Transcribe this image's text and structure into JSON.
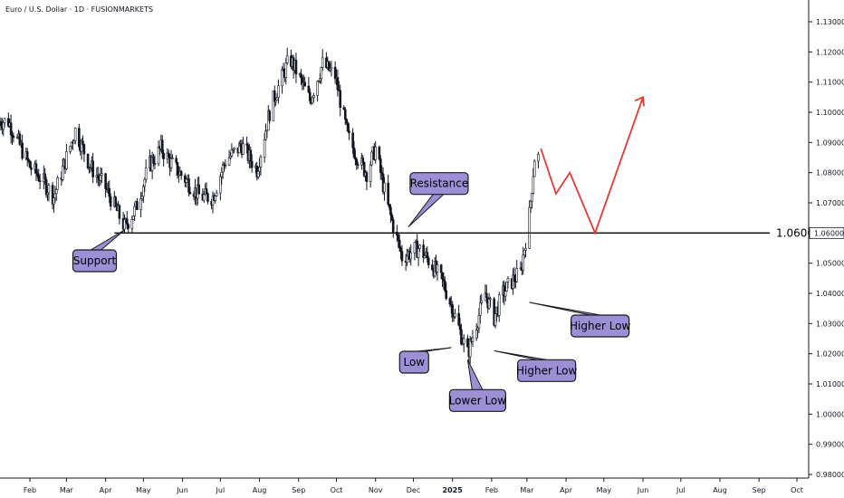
{
  "title": "Euro / U.S. Dollar · 1D · FUSIONMARKETS",
  "colors": {
    "candle": "#131722",
    "level_line": "#000000",
    "projection": "#e53935",
    "callout_fill": "#9c8fd6",
    "callout_stroke": "#1a1a1a",
    "axis": "#131722",
    "price_tag_bg": "#ffffff"
  },
  "chart_data": {
    "type": "line",
    "title": "Euro / U.S. Dollar · 1D · FUSIONMARKETS",
    "xlabel": "",
    "ylabel": "",
    "ylim": [
      0.98,
      1.135
    ],
    "grid": false,
    "y_ticks": [
      "1.13000",
      "1.12000",
      "1.11000",
      "1.10000",
      "1.09000",
      "1.08000",
      "1.07000",
      "1.06000",
      "1.05000",
      "1.04000",
      "1.03000",
      "1.02000",
      "1.01000",
      "1.00000",
      "0.99000",
      "0.98000"
    ],
    "x_ticks": [
      "Feb",
      "Mar",
      "Apr",
      "May",
      "Jun",
      "Jul",
      "Aug",
      "Sep",
      "Oct",
      "Nov",
      "Dec",
      "2025",
      "Feb",
      "Mar",
      "Apr",
      "May",
      "Jun",
      "Jul",
      "Aug",
      "Sep",
      "Oct"
    ],
    "x_ticks_bold": [
      "2025"
    ],
    "series": [
      {
        "type": "price",
        "x": [
          "2024-01-15",
          "2024-02-01",
          "2024-02-10",
          "2024-02-20",
          "2024-03-01",
          "2024-03-08",
          "2024-03-20",
          "2024-04-01",
          "2024-04-16",
          "2024-04-25",
          "2024-05-05",
          "2024-05-15",
          "2024-05-25",
          "2024-06-05",
          "2024-06-15",
          "2024-06-25",
          "2024-07-05",
          "2024-07-18",
          "2024-07-30",
          "2024-08-10",
          "2024-08-25",
          "2024-09-01",
          "2024-09-10",
          "2024-09-20",
          "2024-09-30",
          "2024-10-10",
          "2024-10-20",
          "2024-10-25",
          "2024-11-01",
          "2024-11-10",
          "2024-11-22",
          "2024-12-05",
          "2024-12-15",
          "2024-12-25",
          "2025-01-01",
          "2025-01-08",
          "2025-01-13",
          "2025-01-20",
          "2025-01-27",
          "2025-02-03",
          "2025-02-10",
          "2025-02-17",
          "2025-02-24",
          "2025-03-03",
          "2025-03-07"
        ],
        "y": [
          1.097,
          1.082,
          1.078,
          1.072,
          1.085,
          1.094,
          1.082,
          1.075,
          1.062,
          1.068,
          1.082,
          1.088,
          1.082,
          1.077,
          1.072,
          1.072,
          1.084,
          1.089,
          1.081,
          1.102,
          1.118,
          1.112,
          1.104,
          1.116,
          1.112,
          1.092,
          1.083,
          1.08,
          1.088,
          1.07,
          1.052,
          1.055,
          1.05,
          1.043,
          1.035,
          1.026,
          1.02,
          1.03,
          1.04,
          1.032,
          1.04,
          1.044,
          1.047,
          1.066,
          1.085
        ]
      },
      {
        "type": "projection",
        "x": [
          "2025-03-12",
          "2025-03-24",
          "2025-04-04",
          "2025-04-24",
          "2025-06-01"
        ],
        "y": [
          1.088,
          1.073,
          1.08,
          1.06,
          1.105
        ]
      }
    ],
    "levels": [
      {
        "value": 1.06,
        "label": "1.0600",
        "axis_label": "1.06000"
      }
    ],
    "annotations": [
      {
        "text": "Support",
        "x": "2024-04-16",
        "y": 1.061
      },
      {
        "text": "Resistance",
        "x": "2024-11-27",
        "y": 1.062
      },
      {
        "text": "Low",
        "x": "2024-12-31",
        "y": 1.022
      },
      {
        "text": "Lower Low",
        "x": "2025-01-13",
        "y": 1.018
      },
      {
        "text": "Higher Low",
        "x": "2025-02-03",
        "y": 1.021
      },
      {
        "text": "Higher Low",
        "x": "2025-03-03",
        "y": 1.037
      }
    ]
  }
}
